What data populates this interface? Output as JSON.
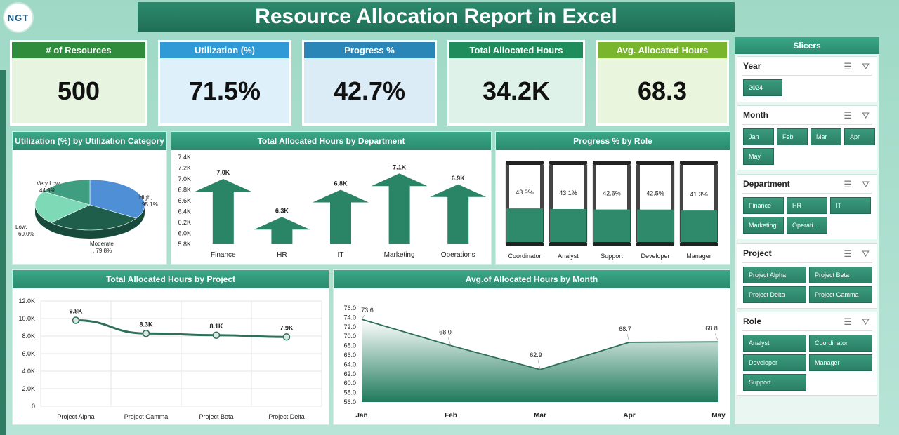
{
  "header": {
    "title": "Resource Allocation Report in Excel",
    "logo_text": "NGT"
  },
  "kpis": [
    {
      "label": "# of Resources",
      "value": "500",
      "head_color": "#2e8c3c",
      "body_color": "#e6f4e0"
    },
    {
      "label": "Utilization (%)",
      "value": "71.5%",
      "head_color": "#2f9ad6",
      "body_color": "#def0fa"
    },
    {
      "label": "Progress %",
      "value": "42.7%",
      "head_color": "#2a86b6",
      "body_color": "#dcecf6"
    },
    {
      "label": "Total Allocated Hours",
      "value": "34.2K",
      "head_color": "#1f8c5c",
      "body_color": "#dff2e9"
    },
    {
      "label": "Avg. Allocated Hours",
      "value": "68.3",
      "head_color": "#7ab52e",
      "body_color": "#eaf5dd"
    }
  ],
  "charts": {
    "util_pie": {
      "title": "Utilization (%) by Utilization Category",
      "type": "pie",
      "slices": [
        {
          "name": "Very Low",
          "label": "Very Low,",
          "value_label": "44.9%",
          "value": 44.9,
          "color": "#3f9e80"
        },
        {
          "name": "High",
          "label": "High,",
          "value_label": "95.1%",
          "value": 95.1,
          "color": "#4e8fd6"
        },
        {
          "name": "Moderate",
          "label": "Moderate",
          "value_label": ", 79.8%",
          "value": 79.8,
          "color": "#1e5e4b"
        },
        {
          "name": "Low",
          "label": "Low,",
          "value_label": "60.0%",
          "value": 60.0,
          "color": "#7ed9b7"
        }
      ]
    },
    "dept_bar": {
      "title": "Total Allocated Hours by Department",
      "type": "bar",
      "categories": [
        "Finance",
        "HR",
        "IT",
        "Marketing",
        "Operations"
      ],
      "values": [
        7.0,
        6.3,
        6.8,
        7.1,
        6.9
      ],
      "labels": [
        "7.0K",
        "6.3K",
        "6.8K",
        "7.1K",
        "6.9K"
      ],
      "ylim": [
        5.8,
        7.4
      ],
      "yticks": [
        "7.4K",
        "7.2K",
        "7.0K",
        "6.8K",
        "6.6K",
        "6.4K",
        "6.2K",
        "6.0K",
        "5.8K"
      ]
    },
    "role_progress": {
      "title": "Progress % by Role",
      "type": "bar",
      "categories": [
        "Coordinator",
        "Analyst",
        "Support",
        "Developer",
        "Manager"
      ],
      "values": [
        43.9,
        43.1,
        42.6,
        42.5,
        41.3
      ],
      "labels": [
        "43.9%",
        "43.1%",
        "42.6%",
        "42.5%",
        "41.3%"
      ]
    },
    "project_line": {
      "title": "Total Allocated Hours by Project",
      "type": "line",
      "categories": [
        "Project Alpha",
        "Project Gamma",
        "Project Beta",
        "Project Delta"
      ],
      "values": [
        9.8,
        8.3,
        8.1,
        7.9
      ],
      "labels": [
        "9.8K",
        "8.3K",
        "8.1K",
        "7.9K"
      ],
      "ylim": [
        0,
        12
      ],
      "yticks": [
        "12.0K",
        "10.0K",
        "8.0K",
        "6.0K",
        "4.0K",
        "2.0K",
        "0"
      ]
    },
    "month_area": {
      "title": "Avg.of Allocated Hours by Month",
      "type": "area",
      "categories": [
        "Jan",
        "Feb",
        "Mar",
        "Apr",
        "May"
      ],
      "values": [
        73.6,
        68.0,
        62.9,
        68.7,
        68.8
      ],
      "labels": [
        "73.6",
        "68.0",
        "62.9",
        "68.7",
        "68.8"
      ],
      "ylim": [
        56,
        76
      ],
      "yticks": [
        "76.0",
        "74.0",
        "72.0",
        "70.0",
        "68.0",
        "66.0",
        "64.0",
        "62.0",
        "60.0",
        "58.0",
        "56.0"
      ]
    }
  },
  "slicers": {
    "title": "Slicers",
    "groups": [
      {
        "name": "Year",
        "items": [
          "2024"
        ]
      },
      {
        "name": "Month",
        "items": [
          "Jan",
          "Feb",
          "Mar",
          "Apr",
          "May"
        ]
      },
      {
        "name": "Department",
        "items": [
          "Finance",
          "HR",
          "IT",
          "Marketing",
          "Operati..."
        ]
      },
      {
        "name": "Project",
        "items": [
          "Project Alpha",
          "Project Beta",
          "Project Delta",
          "Project Gamma"
        ]
      },
      {
        "name": "Role",
        "items": [
          "Analyst",
          "Coordinator",
          "Developer",
          "Manager",
          "Support"
        ]
      }
    ],
    "icons": {
      "multiselect": "multiselect-icon",
      "clear": "clear-filter-icon"
    }
  }
}
